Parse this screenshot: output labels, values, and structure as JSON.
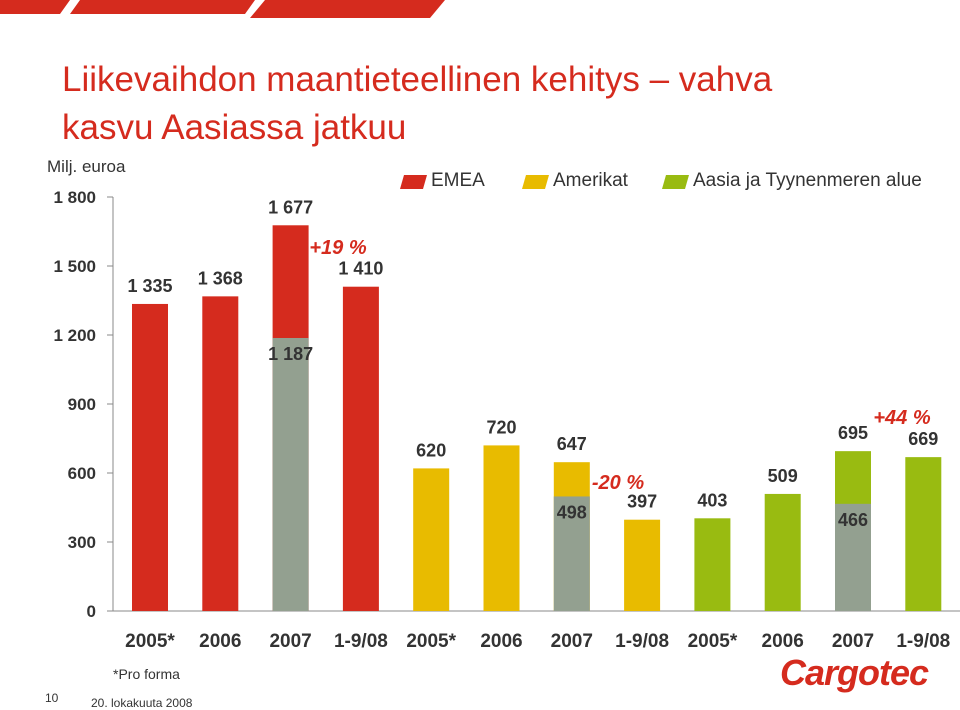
{
  "title_line1": "Liikevaihdon maantieteellinen kehitys – vahva",
  "title_line2": "kasvu Aasiassa jatkuu",
  "footnote": "*Pro forma",
  "page_number": "10",
  "date": "20. lokakuuta 2008",
  "logo_text": "Cargotec",
  "colors": {
    "emea": "#d52b1e",
    "amerikat": "#e8bb00",
    "aasia": "#99bb11",
    "gray": "#93a090",
    "axis": "#888888",
    "label": "#333333",
    "brand": "#d52b1e"
  },
  "chart_data": {
    "type": "bar",
    "ylabel": "Milj. euroa",
    "ylim": [
      0,
      1800
    ],
    "yticks": [
      0,
      300,
      600,
      900,
      1200,
      1500,
      1800
    ],
    "ytick_labels": [
      "0",
      "300",
      "600",
      "900",
      "1 200",
      "1 500",
      "1 800"
    ],
    "legend": [
      {
        "name": "EMEA",
        "color": "#d52b1e"
      },
      {
        "name": "Amerikat",
        "color": "#e8bb00"
      },
      {
        "name": "Aasia ja Tyynenmeren alue",
        "color": "#99bb11"
      }
    ],
    "legend_position": "top",
    "grid": false,
    "bars": [
      {
        "category": "2005*",
        "series": "EMEA",
        "value": 1335,
        "label": "1 335"
      },
      {
        "category": "2006",
        "series": "EMEA",
        "value": 1368,
        "label": "1 368"
      },
      {
        "category": "2007",
        "series": "EMEA",
        "value": 1677,
        "label": "1 677",
        "gray_value": 1187,
        "gray_label": "1 187"
      },
      {
        "category": "1-9/08",
        "series": "EMEA",
        "value": 1410,
        "label": "1 410"
      },
      {
        "category": "2005*",
        "series": "Amerikat",
        "value": 620,
        "label": "620"
      },
      {
        "category": "2006",
        "series": "Amerikat",
        "value": 720,
        "label": "720"
      },
      {
        "category": "2007",
        "series": "Amerikat",
        "value": 647,
        "label": "647",
        "gray_value": 498,
        "gray_label": "498"
      },
      {
        "category": "1-9/08",
        "series": "Amerikat",
        "value": 397,
        "label": "397"
      },
      {
        "category": "2005*",
        "series": "Aasia ja Tyynenmeren alue",
        "value": 403,
        "label": "403"
      },
      {
        "category": "2006",
        "series": "Aasia ja Tyynenmeren alue",
        "value": 509,
        "label": "509"
      },
      {
        "category": "2007",
        "series": "Aasia ja Tyynenmeren alue",
        "value": 695,
        "label": "695",
        "gray_value": 466,
        "gray_label": "466"
      },
      {
        "category": "1-9/08",
        "series": "Aasia ja Tyynenmeren alue",
        "value": 669,
        "label": "669"
      }
    ],
    "annotations": [
      {
        "text": "+19 %",
        "group": "EMEA"
      },
      {
        "text": "-20 %",
        "group": "Amerikat"
      },
      {
        "text": "+44 %",
        "group": "Aasia ja Tyynenmeren alue"
      }
    ]
  }
}
